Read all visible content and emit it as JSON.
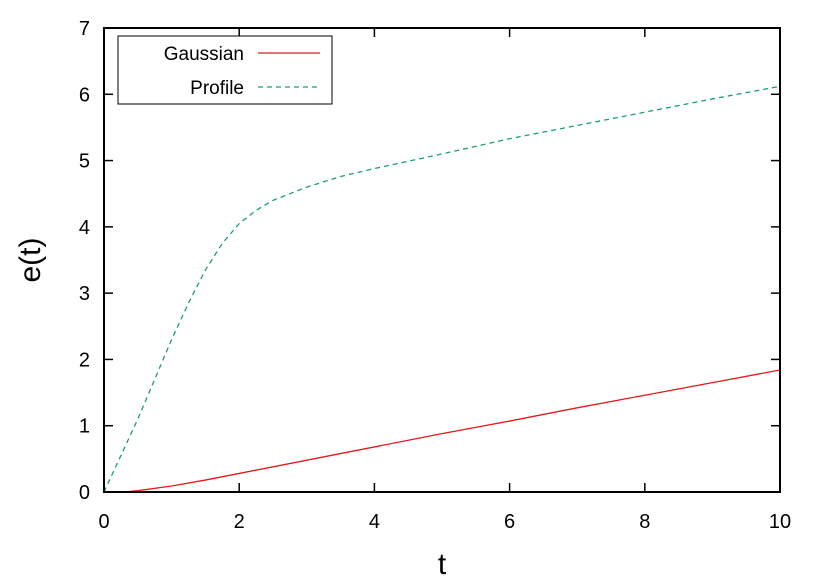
{
  "chart_data": {
    "type": "line",
    "title": "",
    "xlabel": "t",
    "ylabel": "e(t)",
    "xlim": [
      0,
      10
    ],
    "ylim": [
      0,
      7
    ],
    "xticks": [
      "0",
      "2",
      "4",
      "6",
      "8",
      "10"
    ],
    "yticks": [
      "0",
      "1",
      "2",
      "3",
      "4",
      "5",
      "6",
      "7"
    ],
    "grid": false,
    "legend_position": "top-left",
    "series": [
      {
        "name": "Gaussian",
        "color": "#e41a1c",
        "style": "solid",
        "x": [
          0,
          0.3,
          0.5,
          1,
          1.5,
          2,
          3,
          4,
          5,
          6,
          7,
          8,
          9,
          10
        ],
        "y": [
          0,
          0.0,
          0.02,
          0.09,
          0.18,
          0.28,
          0.48,
          0.68,
          0.88,
          1.07,
          1.27,
          1.46,
          1.65,
          1.84
        ]
      },
      {
        "name": "Profile",
        "color": "#1b9e77",
        "style": "dashed",
        "x": [
          0,
          0.25,
          0.5,
          0.75,
          1,
          1.25,
          1.5,
          1.75,
          2,
          2.25,
          2.5,
          3,
          3.5,
          4,
          5,
          6,
          7,
          8,
          9,
          10
        ],
        "y": [
          0,
          0.55,
          1.1,
          1.7,
          2.3,
          2.85,
          3.35,
          3.75,
          4.05,
          4.25,
          4.4,
          4.6,
          4.76,
          4.88,
          5.1,
          5.33,
          5.53,
          5.73,
          5.93,
          6.12
        ]
      }
    ]
  }
}
